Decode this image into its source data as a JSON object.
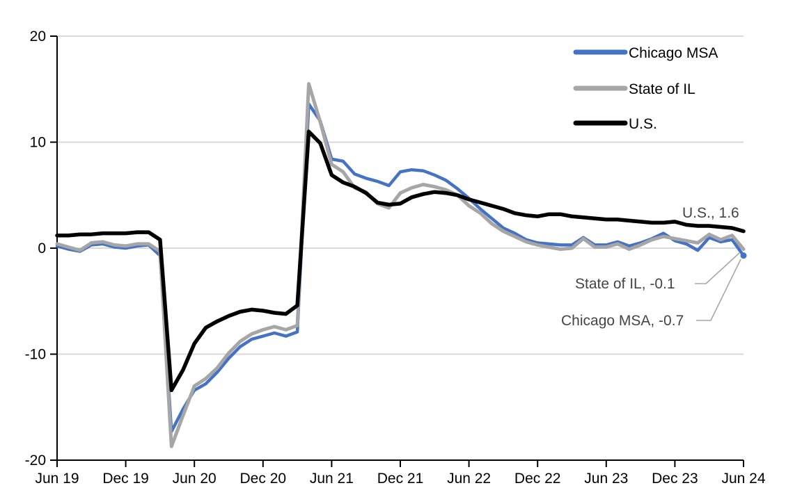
{
  "chart_data": {
    "type": "line",
    "frequency": "monthly",
    "x_start": "Jun 2019",
    "x_end": "Jun 2024",
    "x_tick_labels": [
      "Jun 19",
      "Dec 19",
      "Jun 20",
      "Dec 20",
      "Jun 21",
      "Dec 21",
      "Jun 22",
      "Dec 22",
      "Jun 23",
      "Dec 23",
      "Jun 24"
    ],
    "y_tick_labels": [
      "20",
      "10",
      "0",
      "-10",
      "-20"
    ],
    "y_ticks": [
      20,
      10,
      0,
      -10,
      -20
    ],
    "gridline_values": [
      20,
      10,
      0,
      -10
    ],
    "ylim": [
      -20,
      20
    ],
    "series": [
      {
        "name": "Chicago MSA",
        "color": "#4472C4",
        "end_marker": true,
        "values": [
          0.2,
          -0.1,
          -0.3,
          0.3,
          0.4,
          0.1,
          0.0,
          0.2,
          0.3,
          -0.7,
          -17.3,
          -15.2,
          -13.4,
          -12.8,
          -11.7,
          -10.4,
          -9.3,
          -8.6,
          -8.3,
          -8.0,
          -8.3,
          -7.9,
          13.6,
          12.0,
          8.4,
          8.2,
          7.0,
          6.6,
          6.3,
          5.9,
          7.2,
          7.4,
          7.3,
          6.9,
          6.4,
          5.6,
          4.7,
          3.7,
          2.8,
          1.9,
          1.4,
          0.8,
          0.5,
          0.4,
          0.3,
          0.3,
          1.0,
          0.3,
          0.3,
          0.6,
          0.2,
          0.5,
          0.9,
          1.4,
          0.7,
          0.4,
          -0.2,
          1.0,
          0.6,
          0.8,
          -0.7
        ]
      },
      {
        "name": "State of IL",
        "color": "#A6A6A6",
        "end_marker": false,
        "values": [
          0.4,
          0.1,
          -0.2,
          0.5,
          0.6,
          0.3,
          0.2,
          0.4,
          0.4,
          -0.3,
          -18.7,
          -15.8,
          -13.0,
          -12.3,
          -11.3,
          -9.9,
          -8.8,
          -8.1,
          -7.7,
          -7.4,
          -7.7,
          -7.3,
          15.5,
          11.9,
          7.9,
          7.2,
          5.7,
          5.3,
          4.2,
          3.8,
          5.2,
          5.7,
          6.0,
          5.8,
          5.5,
          5.0,
          4.0,
          3.3,
          2.3,
          1.6,
          1.1,
          0.6,
          0.3,
          0.1,
          -0.1,
          0.0,
          0.9,
          0.1,
          0.1,
          0.4,
          -0.1,
          0.3,
          0.8,
          1.1,
          0.9,
          0.7,
          0.5,
          1.3,
          0.8,
          1.2,
          -0.1
        ]
      },
      {
        "name": "U.S.",
        "color": "#000000",
        "end_marker": false,
        "values": [
          1.2,
          1.2,
          1.3,
          1.3,
          1.4,
          1.4,
          1.4,
          1.5,
          1.5,
          0.8,
          -13.4,
          -11.5,
          -9.0,
          -7.5,
          -6.9,
          -6.4,
          -6.0,
          -5.8,
          -5.9,
          -6.1,
          -6.2,
          -5.4,
          11.0,
          9.9,
          6.9,
          6.2,
          5.8,
          5.2,
          4.3,
          4.1,
          4.2,
          4.8,
          5.1,
          5.3,
          5.2,
          5.0,
          4.6,
          4.3,
          4.0,
          3.7,
          3.3,
          3.1,
          3.0,
          3.2,
          3.2,
          3.0,
          2.9,
          2.8,
          2.7,
          2.7,
          2.6,
          2.5,
          2.4,
          2.4,
          2.5,
          2.2,
          2.1,
          2.1,
          2.0,
          1.9,
          1.6
        ]
      }
    ],
    "legend_position": "top-right",
    "grid": "horizontal",
    "annotations": [
      {
        "series": "U.S.",
        "text": "U.S., 1.6",
        "value": 1.6
      },
      {
        "series": "State of IL",
        "text": "State of IL, -0.1",
        "value": -0.1
      },
      {
        "series": "Chicago MSA",
        "text": "Chicago MSA, -0.7",
        "value": -0.7
      }
    ],
    "callout_line_color": "#A6A6A6",
    "gridline_color": "#D9D9D9"
  }
}
